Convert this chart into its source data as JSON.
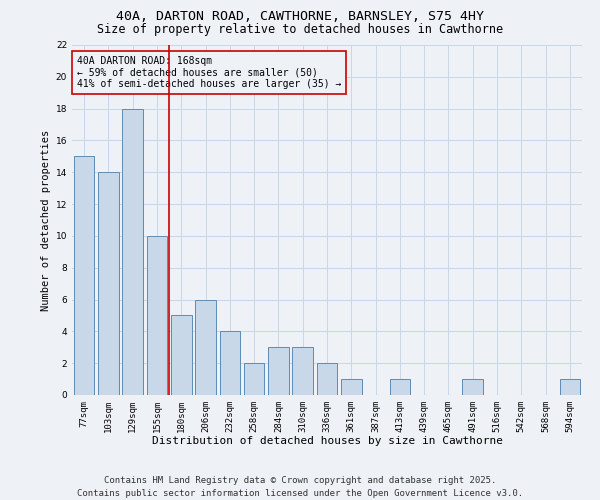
{
  "title_line1": "40A, DARTON ROAD, CAWTHORNE, BARNSLEY, S75 4HY",
  "title_line2": "Size of property relative to detached houses in Cawthorne",
  "categories": [
    "77sqm",
    "103sqm",
    "129sqm",
    "155sqm",
    "180sqm",
    "206sqm",
    "232sqm",
    "258sqm",
    "284sqm",
    "310sqm",
    "336sqm",
    "361sqm",
    "387sqm",
    "413sqm",
    "439sqm",
    "465sqm",
    "491sqm",
    "516sqm",
    "542sqm",
    "568sqm",
    "594sqm"
  ],
  "values": [
    15,
    14,
    18,
    10,
    5,
    6,
    4,
    2,
    3,
    3,
    2,
    1,
    0,
    1,
    0,
    0,
    1,
    0,
    0,
    0,
    1
  ],
  "bar_color": "#c8d8e8",
  "bar_edge_color": "#5b8db8",
  "xlabel": "Distribution of detached houses by size in Cawthorne",
  "ylabel": "Number of detached properties",
  "ylim": [
    0,
    22
  ],
  "yticks": [
    0,
    2,
    4,
    6,
    8,
    10,
    12,
    14,
    16,
    18,
    20,
    22
  ],
  "vline_index": 3,
  "vline_color": "#cc0000",
  "annotation_title": "40A DARTON ROAD: 168sqm",
  "annotation_line2": "← 59% of detached houses are smaller (50)",
  "annotation_line3": "41% of semi-detached houses are larger (35) →",
  "annotation_box_color": "#cc0000",
  "grid_color": "#c8d8e8",
  "background_color": "#eef2f7",
  "footer_line1": "Contains HM Land Registry data © Crown copyright and database right 2025.",
  "footer_line2": "Contains public sector information licensed under the Open Government Licence v3.0.",
  "title_fontsize": 9.5,
  "subtitle_fontsize": 8.5,
  "xlabel_fontsize": 8,
  "ylabel_fontsize": 7.5,
  "tick_fontsize": 6.5,
  "annotation_fontsize": 7,
  "footer_fontsize": 6.5
}
